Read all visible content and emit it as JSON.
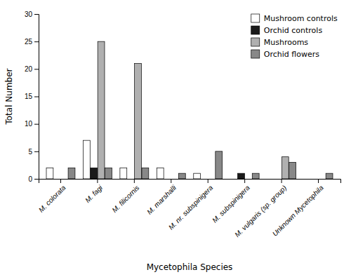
{
  "chart_data": {
    "type": "bar",
    "categories": [
      "M. colorata",
      "M. fagi",
      "M. filicornis",
      "M. marshalli",
      "M. nr. subspinigera",
      "M. subspinigera",
      "M. vulgaris (sp. group)",
      "Unknown Mycetophila"
    ],
    "series": [
      {
        "name": "Mushroom controls",
        "color": "#ffffff",
        "values": [
          2,
          7,
          2,
          2,
          1,
          0,
          0,
          0
        ]
      },
      {
        "name": "Orchid controls",
        "color": "#1a1a1a",
        "values": [
          0,
          2,
          0,
          0,
          0,
          1,
          0,
          0
        ]
      },
      {
        "name": "Mushrooms",
        "color": "#b0b0b0",
        "values": [
          0,
          25,
          21,
          0,
          0,
          0,
          4,
          0
        ]
      },
      {
        "name": "Orchid flowers",
        "color": "#888888",
        "values": [
          2,
          2,
          2,
          1,
          5,
          1,
          3,
          1
        ]
      }
    ],
    "xlabel": "Mycetophila Species",
    "ylabel": "Total Number",
    "ylim": [
      0,
      30
    ],
    "yticks": [
      0,
      5,
      10,
      15,
      20,
      25,
      30
    ],
    "grid": false,
    "legend": "upper right"
  }
}
